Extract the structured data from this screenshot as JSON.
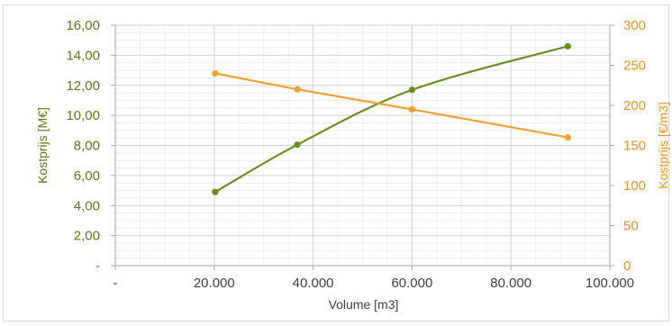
{
  "chart_data": {
    "type": "line",
    "xlabel": "Volume [m3]",
    "ylabel_left": "Kostprijs [M€]",
    "ylabel_right": "Kostprijs [€/m3]",
    "xlim": [
      0,
      100000
    ],
    "ylim_left": [
      0,
      16
    ],
    "ylim_right": [
      0,
      300
    ],
    "x_tick_labels": [
      "-",
      "20.000",
      "40.000",
      "60.000",
      "80.000",
      "100.000"
    ],
    "y_left_tick_labels": [
      "-",
      "2,00",
      "4,00",
      "6,00",
      "8,00",
      "10,00",
      "12,00",
      "14,00",
      "16,00"
    ],
    "y_right_tick_labels": [
      "0",
      "50",
      "100",
      "150",
      "200",
      "250",
      "300"
    ],
    "grid": true,
    "series": [
      {
        "axis": "left",
        "color": "#6b8e1f",
        "x": [
          20200,
          36800,
          60000,
          91500
        ],
        "values": [
          4.9,
          8.05,
          11.7,
          14.6
        ]
      },
      {
        "axis": "right",
        "color": "#f0a030",
        "x": [
          20200,
          36800,
          60000,
          91500
        ],
        "values": [
          240,
          220,
          195,
          160
        ]
      }
    ]
  }
}
